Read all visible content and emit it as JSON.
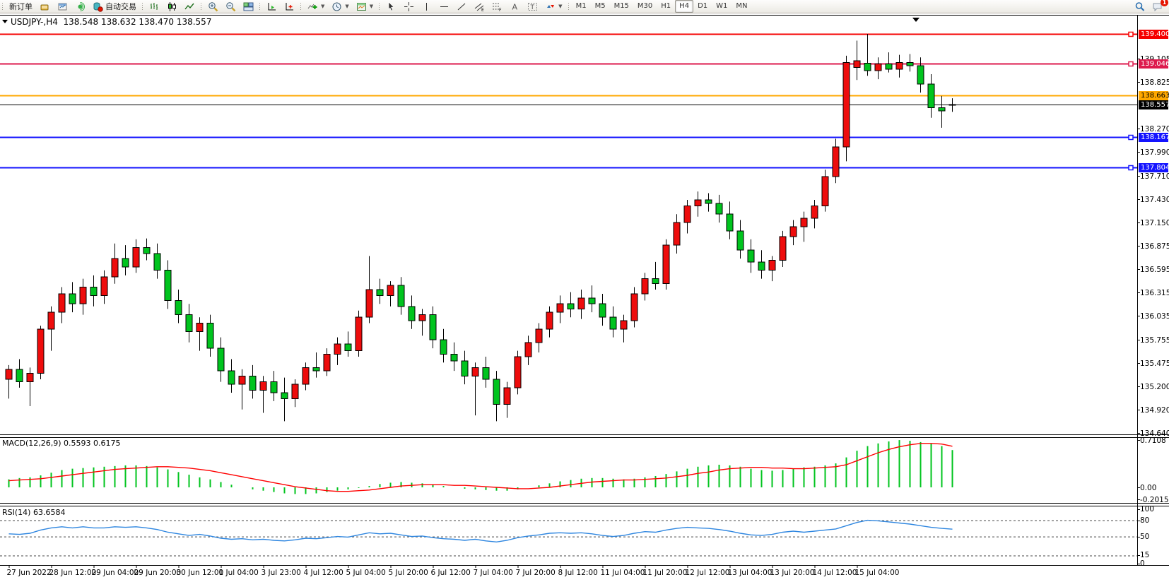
{
  "toolbar": {
    "new_order": "新订单",
    "autotrading": "自动交易",
    "timeframes": [
      {
        "label": "M1",
        "active": false
      },
      {
        "label": "M5",
        "active": false
      },
      {
        "label": "M15",
        "active": false
      },
      {
        "label": "M30",
        "active": false
      },
      {
        "label": "H1",
        "active": false
      },
      {
        "label": "H4",
        "active": true
      },
      {
        "label": "D1",
        "active": false
      },
      {
        "label": "W1",
        "active": false
      },
      {
        "label": "MN",
        "active": false
      }
    ],
    "notification_count": "1"
  },
  "chart": {
    "title_symbol": "USDJPY-,H4",
    "title_ohlc": "138.548 138.632 138.470 138.557"
  },
  "price_axis": {
    "ticks": [
      "139.105",
      "138.825",
      "138.270",
      "137.990",
      "137.710",
      "137.430",
      "137.150",
      "136.875",
      "136.595",
      "136.315",
      "136.035",
      "135.755",
      "135.475",
      "135.200",
      "134.920",
      "134.640"
    ]
  },
  "hlines": [
    {
      "price": 139.4,
      "label": "139.400",
      "color": "#f50000",
      "text_color": "#ffffff",
      "marker": true
    },
    {
      "price": 139.046,
      "label": "139.046",
      "color": "#dd1a4d",
      "text_color": "#ffffff",
      "marker": true
    },
    {
      "price": 138.663,
      "label": "138.663",
      "color": "#ffa800",
      "text_color": "#000000",
      "marker": false
    },
    {
      "price": 138.557,
      "label": "138.557",
      "color": "#000000",
      "text_color": "#ffffff",
      "marker": false
    },
    {
      "price": 138.167,
      "label": "138.167",
      "color": "#1414ff",
      "text_color": "#ffffff",
      "marker": true
    },
    {
      "price": 137.804,
      "label": "137.804",
      "color": "#1414ff",
      "text_color": "#ffffff",
      "marker": true
    }
  ],
  "chart_data": {
    "type": "candlestick",
    "symbol": "USDJPY-",
    "period": "H4",
    "up_color": "#ee0c0c",
    "down_color": "#00c41e",
    "ylim": [
      134.64,
      139.45
    ],
    "candles": [
      [
        135.28,
        135.45,
        135.05,
        135.4
      ],
      [
        135.4,
        135.52,
        135.18,
        135.25
      ],
      [
        135.25,
        135.42,
        134.96,
        135.35
      ],
      [
        135.35,
        135.92,
        135.28,
        135.88
      ],
      [
        135.88,
        136.15,
        135.62,
        136.08
      ],
      [
        136.08,
        136.38,
        135.95,
        136.3
      ],
      [
        136.3,
        136.44,
        136.08,
        136.18
      ],
      [
        136.18,
        136.48,
        136.05,
        136.38
      ],
      [
        136.38,
        136.52,
        136.15,
        136.28
      ],
      [
        136.28,
        136.58,
        136.18,
        136.5
      ],
      [
        136.5,
        136.9,
        136.42,
        136.72
      ],
      [
        136.72,
        136.88,
        136.52,
        136.62
      ],
      [
        136.62,
        136.95,
        136.55,
        136.85
      ],
      [
        136.85,
        136.96,
        136.7,
        136.78
      ],
      [
        136.78,
        136.9,
        136.48,
        136.58
      ],
      [
        136.58,
        136.7,
        136.12,
        136.22
      ],
      [
        136.22,
        136.35,
        135.95,
        136.05
      ],
      [
        136.05,
        136.18,
        135.72,
        135.85
      ],
      [
        135.85,
        136.02,
        135.62,
        135.95
      ],
      [
        135.95,
        136.05,
        135.55,
        135.65
      ],
      [
        135.65,
        135.78,
        135.25,
        135.38
      ],
      [
        135.38,
        135.52,
        135.12,
        135.22
      ],
      [
        135.22,
        135.4,
        134.92,
        135.32
      ],
      [
        135.32,
        135.45,
        135.05,
        135.15
      ],
      [
        135.15,
        135.32,
        134.88,
        135.25
      ],
      [
        135.25,
        135.38,
        135.02,
        135.12
      ],
      [
        135.12,
        135.3,
        134.78,
        135.05
      ],
      [
        135.05,
        135.28,
        134.95,
        135.22
      ],
      [
        135.22,
        135.48,
        135.15,
        135.42
      ],
      [
        135.42,
        135.6,
        135.3,
        135.38
      ],
      [
        135.38,
        135.65,
        135.32,
        135.58
      ],
      [
        135.58,
        135.78,
        135.45,
        135.7
      ],
      [
        135.7,
        135.85,
        135.55,
        135.62
      ],
      [
        135.62,
        136.1,
        135.55,
        136.02
      ],
      [
        136.02,
        136.75,
        135.95,
        136.35
      ],
      [
        136.35,
        136.48,
        136.18,
        136.28
      ],
      [
        136.28,
        136.45,
        136.15,
        136.4
      ],
      [
        136.4,
        136.5,
        136.05,
        136.15
      ],
      [
        136.15,
        136.28,
        135.88,
        135.98
      ],
      [
        135.98,
        136.12,
        135.8,
        136.05
      ],
      [
        136.05,
        136.15,
        135.65,
        135.75
      ],
      [
        135.75,
        135.88,
        135.48,
        135.58
      ],
      [
        135.58,
        135.72,
        135.38,
        135.5
      ],
      [
        135.5,
        135.62,
        135.22,
        135.32
      ],
      [
        135.32,
        135.48,
        134.85,
        135.42
      ],
      [
        135.42,
        135.55,
        135.18,
        135.28
      ],
      [
        135.28,
        135.38,
        134.78,
        134.98
      ],
      [
        134.98,
        135.25,
        134.82,
        135.18
      ],
      [
        135.18,
        135.62,
        135.1,
        135.55
      ],
      [
        135.55,
        135.8,
        135.45,
        135.72
      ],
      [
        135.72,
        135.95,
        135.6,
        135.88
      ],
      [
        135.88,
        136.15,
        135.78,
        136.08
      ],
      [
        136.08,
        136.28,
        135.95,
        136.18
      ],
      [
        136.18,
        136.32,
        136.02,
        136.12
      ],
      [
        136.12,
        136.35,
        136.0,
        136.25
      ],
      [
        136.25,
        136.4,
        136.08,
        136.18
      ],
      [
        136.18,
        136.3,
        135.92,
        136.02
      ],
      [
        136.02,
        136.15,
        135.78,
        135.88
      ],
      [
        135.88,
        136.05,
        135.72,
        135.98
      ],
      [
        135.98,
        136.38,
        135.9,
        136.3
      ],
      [
        136.3,
        136.55,
        136.22,
        136.48
      ],
      [
        136.48,
        136.68,
        136.35,
        136.42
      ],
      [
        136.42,
        136.95,
        136.35,
        136.88
      ],
      [
        136.88,
        137.25,
        136.78,
        137.15
      ],
      [
        137.15,
        137.42,
        137.02,
        137.35
      ],
      [
        137.35,
        137.52,
        137.22,
        137.42
      ],
      [
        137.42,
        137.5,
        137.28,
        137.38
      ],
      [
        137.38,
        137.48,
        137.15,
        137.25
      ],
      [
        137.25,
        137.4,
        136.95,
        137.05
      ],
      [
        137.05,
        137.18,
        136.72,
        136.82
      ],
      [
        136.82,
        136.95,
        136.55,
        136.68
      ],
      [
        136.68,
        136.82,
        136.48,
        136.58
      ],
      [
        136.58,
        136.75,
        136.45,
        136.7
      ],
      [
        136.7,
        137.05,
        136.62,
        136.98
      ],
      [
        136.98,
        137.18,
        136.88,
        137.1
      ],
      [
        137.1,
        137.28,
        136.92,
        137.2
      ],
      [
        137.2,
        137.42,
        137.08,
        137.35
      ],
      [
        137.35,
        137.78,
        137.28,
        137.7
      ],
      [
        137.7,
        138.15,
        137.62,
        138.05
      ],
      [
        138.05,
        139.14,
        137.88,
        139.06
      ],
      [
        139.0,
        139.32,
        138.85,
        139.08
      ],
      [
        139.05,
        139.4,
        138.9,
        138.96
      ],
      [
        138.96,
        139.12,
        138.86,
        139.04
      ],
      [
        139.04,
        139.18,
        138.94,
        138.98
      ],
      [
        138.98,
        139.15,
        138.88,
        139.06
      ],
      [
        139.06,
        139.16,
        138.95,
        139.02
      ],
      [
        139.02,
        139.12,
        138.7,
        138.8
      ],
      [
        138.8,
        138.92,
        138.4,
        138.52
      ],
      [
        138.52,
        138.66,
        138.28,
        138.48
      ],
      [
        138.548,
        138.632,
        138.47,
        138.557
      ]
    ],
    "time_labels": [
      "27 Jun 2022",
      "28 Jun 12:00",
      "29 Jun 04:00",
      "29 Jun 20:00",
      "30 Jun 12:00",
      "1 Jul 04:00",
      "3 Jul 23:00",
      "4 Jul 12:00",
      "5 Jul 04:00",
      "5 Jul 20:00",
      "6 Jul 12:00",
      "7 Jul 04:00",
      "7 Jul 20:00",
      "8 Jul 12:00",
      "11 Jul 04:00",
      "11 Jul 20:00",
      "12 Jul 12:00",
      "13 Jul 04:00",
      "13 Jul 20:00",
      "14 Jul 12:00",
      "15 Jul 04:00"
    ],
    "macd": {
      "label": "MACD(12,26,9)",
      "values_text": "0.5593 0.6175",
      "hist_color": "#00c41e",
      "signal_color": "#ff0000",
      "axis_labels": [
        "0.7108",
        "0.00",
        "-0.2015"
      ],
      "histogram": [
        0.12,
        0.14,
        0.15,
        0.18,
        0.22,
        0.26,
        0.28,
        0.29,
        0.3,
        0.31,
        0.32,
        0.33,
        0.33,
        0.32,
        0.3,
        0.27,
        0.23,
        0.19,
        0.15,
        0.12,
        0.08,
        0.04,
        0.0,
        -0.03,
        -0.05,
        -0.07,
        -0.09,
        -0.1,
        -0.1,
        -0.09,
        -0.07,
        -0.05,
        -0.03,
        -0.01,
        0.02,
        0.05,
        0.07,
        0.08,
        0.07,
        0.06,
        0.04,
        0.02,
        0.0,
        -0.02,
        -0.03,
        -0.04,
        -0.05,
        -0.05,
        -0.03,
        0.0,
        0.03,
        0.06,
        0.09,
        0.11,
        0.13,
        0.14,
        0.14,
        0.13,
        0.12,
        0.13,
        0.15,
        0.17,
        0.2,
        0.24,
        0.28,
        0.31,
        0.33,
        0.34,
        0.33,
        0.31,
        0.28,
        0.26,
        0.25,
        0.26,
        0.28,
        0.3,
        0.31,
        0.33,
        0.36,
        0.45,
        0.55,
        0.62,
        0.66,
        0.69,
        0.71,
        0.7,
        0.68,
        0.66,
        0.62,
        0.56
      ],
      "signal": [
        0.1,
        0.11,
        0.12,
        0.13,
        0.15,
        0.17,
        0.19,
        0.21,
        0.23,
        0.25,
        0.27,
        0.28,
        0.29,
        0.3,
        0.31,
        0.31,
        0.3,
        0.29,
        0.27,
        0.25,
        0.22,
        0.19,
        0.16,
        0.13,
        0.1,
        0.07,
        0.04,
        0.01,
        -0.01,
        -0.03,
        -0.05,
        -0.06,
        -0.06,
        -0.05,
        -0.04,
        -0.02,
        0.0,
        0.02,
        0.03,
        0.04,
        0.04,
        0.04,
        0.03,
        0.03,
        0.02,
        0.01,
        0.0,
        -0.01,
        -0.02,
        -0.02,
        -0.01,
        0.0,
        0.02,
        0.04,
        0.06,
        0.08,
        0.09,
        0.1,
        0.11,
        0.11,
        0.12,
        0.13,
        0.14,
        0.16,
        0.18,
        0.21,
        0.23,
        0.26,
        0.28,
        0.29,
        0.3,
        0.3,
        0.29,
        0.29,
        0.28,
        0.28,
        0.29,
        0.3,
        0.31,
        0.34,
        0.4,
        0.46,
        0.52,
        0.57,
        0.61,
        0.64,
        0.66,
        0.66,
        0.65,
        0.6175
      ]
    },
    "rsi": {
      "label": "RSI(14)",
      "value_text": "63.6584",
      "line_color": "#2e86e0",
      "levels": [
        80,
        50,
        15
      ],
      "axis_labels": [
        "100",
        "80",
        "50",
        "15",
        "0"
      ],
      "series": [
        55,
        54,
        56,
        62,
        66,
        68,
        66,
        68,
        66,
        66,
        68,
        67,
        68,
        66,
        63,
        58,
        55,
        52,
        54,
        51,
        47,
        45,
        46,
        44,
        45,
        43,
        42,
        44,
        47,
        46,
        48,
        50,
        49,
        53,
        57,
        55,
        56,
        53,
        50,
        51,
        48,
        46,
        45,
        43,
        45,
        42,
        40,
        43,
        48,
        51,
        53,
        56,
        57,
        56,
        57,
        55,
        52,
        50,
        52,
        56,
        59,
        58,
        62,
        65,
        67,
        66,
        65,
        63,
        60,
        56,
        53,
        52,
        54,
        58,
        60,
        58,
        60,
        62,
        64,
        70,
        76,
        80,
        79,
        77,
        75,
        73,
        70,
        67,
        65,
        63.66
      ]
    }
  }
}
